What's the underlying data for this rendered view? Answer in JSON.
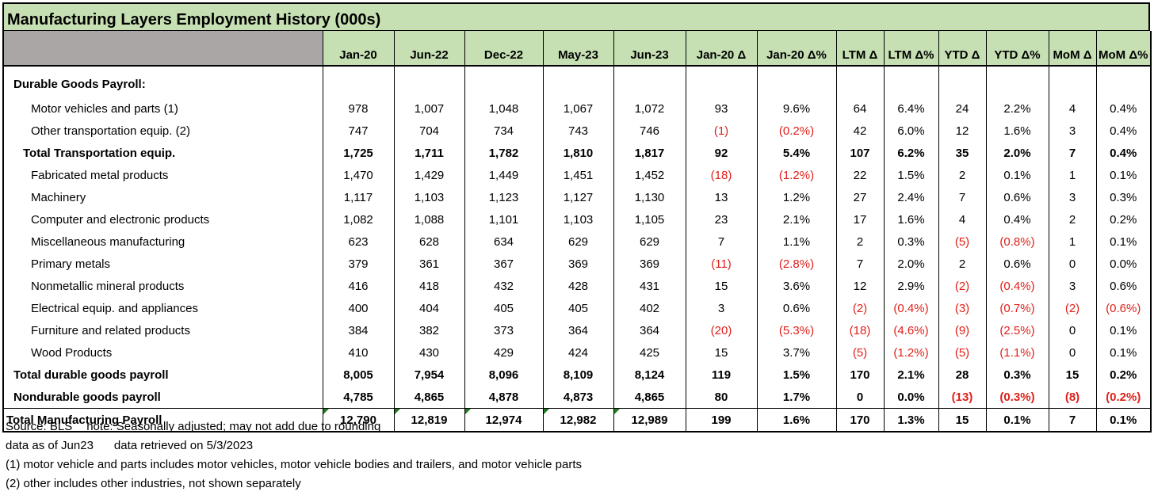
{
  "title": "Manufacturing Layers Employment History (000s)",
  "columns": [
    "Jan-20",
    "Jun-22",
    "Dec-22",
    "May-23",
    "Jun-23",
    "Jan-20 Δ",
    "Jan-20 Δ%",
    "LTM Δ",
    "LTM Δ%",
    "YTD Δ",
    "YTD Δ%",
    "MoM Δ",
    "MoM Δ%"
  ],
  "rows": [
    {
      "label": "Durable Goods Payroll:",
      "style": "section",
      "values": []
    },
    {
      "label": "Motor vehicles and parts (1)",
      "style": "item",
      "flag": true,
      "values": [
        "978",
        "1,007",
        "1,048",
        "1,067",
        "1,072",
        "93",
        "9.6%",
        "64",
        "6.4%",
        "24",
        "2.2%",
        "4",
        "0.4%"
      ]
    },
    {
      "label": "Other transportation equip. (2)",
      "style": "item",
      "values": [
        "747",
        "704",
        "734",
        "743",
        "746",
        "(1)",
        "(0.2%)",
        "42",
        "6.0%",
        "12",
        "1.6%",
        "3",
        "0.4%"
      ]
    },
    {
      "label": "Total Transportation equip.",
      "style": "subtotal",
      "values": [
        "1,725",
        "1,711",
        "1,782",
        "1,810",
        "1,817",
        "92",
        "5.4%",
        "107",
        "6.2%",
        "35",
        "2.0%",
        "7",
        "0.4%"
      ]
    },
    {
      "label": "Fabricated metal products",
      "style": "item",
      "values": [
        "1,470",
        "1,429",
        "1,449",
        "1,451",
        "1,452",
        "(18)",
        "(1.2%)",
        "22",
        "1.5%",
        "2",
        "0.1%",
        "1",
        "0.1%"
      ]
    },
    {
      "label": "Machinery",
      "style": "item",
      "values": [
        "1,117",
        "1,103",
        "1,123",
        "1,127",
        "1,130",
        "13",
        "1.2%",
        "27",
        "2.4%",
        "7",
        "0.6%",
        "3",
        "0.3%"
      ]
    },
    {
      "label": "Computer and electronic products",
      "style": "item",
      "values": [
        "1,082",
        "1,088",
        "1,101",
        "1,103",
        "1,105",
        "23",
        "2.1%",
        "17",
        "1.6%",
        "4",
        "0.4%",
        "2",
        "0.2%"
      ]
    },
    {
      "label": "Miscellaneous manufacturing",
      "style": "item",
      "values": [
        "623",
        "628",
        "634",
        "629",
        "629",
        "7",
        "1.1%",
        "2",
        "0.3%",
        "(5)",
        "(0.8%)",
        "1",
        "0.1%"
      ]
    },
    {
      "label": "Primary metals",
      "style": "item",
      "values": [
        "379",
        "361",
        "367",
        "369",
        "369",
        "(11)",
        "(2.8%)",
        "7",
        "2.0%",
        "2",
        "0.6%",
        "0",
        "0.0%"
      ]
    },
    {
      "label": "Nonmetallic mineral products",
      "style": "item",
      "values": [
        "416",
        "418",
        "432",
        "428",
        "431",
        "15",
        "3.6%",
        "12",
        "2.9%",
        "(2)",
        "(0.4%)",
        "3",
        "0.6%"
      ]
    },
    {
      "label": "Electrical equip. and appliances",
      "style": "item",
      "values": [
        "400",
        "404",
        "405",
        "405",
        "402",
        "3",
        "0.6%",
        "(2)",
        "(0.4%)",
        "(3)",
        "(0.7%)",
        "(2)",
        "(0.6%)"
      ]
    },
    {
      "label": "Furniture and related products",
      "style": "item",
      "values": [
        "384",
        "382",
        "373",
        "364",
        "364",
        "(20)",
        "(5.3%)",
        "(18)",
        "(4.6%)",
        "(9)",
        "(2.5%)",
        "0",
        "0.1%"
      ]
    },
    {
      "label": "Wood Products",
      "style": "item",
      "values": [
        "410",
        "430",
        "429",
        "424",
        "425",
        "15",
        "3.7%",
        "(5)",
        "(1.2%)",
        "(5)",
        "(1.1%)",
        "0",
        "0.1%"
      ]
    },
    {
      "label": "Total durable goods payroll",
      "style": "major",
      "values": [
        "8,005",
        "7,954",
        "8,096",
        "8,109",
        "8,124",
        "119",
        "1.5%",
        "170",
        "2.1%",
        "28",
        "0.3%",
        "15",
        "0.2%"
      ]
    },
    {
      "label": "Nondurable goods payroll",
      "style": "major",
      "values": [
        "4,785",
        "4,865",
        "4,878",
        "4,873",
        "4,865",
        "80",
        "1.7%",
        "0",
        "0.0%",
        "(13)",
        "(0.3%)",
        "(8)",
        "(0.2%)"
      ]
    },
    {
      "label": "Total Manufacturing Payroll",
      "style": "grand",
      "values": [
        "12,790",
        "12,819",
        "12,974",
        "12,982",
        "12,989",
        "199",
        "1.6%",
        "170",
        "1.3%",
        "15",
        "0.1%",
        "7",
        "0.1%"
      ]
    }
  ],
  "notes": {
    "source": "Source: BLS",
    "note": "note: Seasonally adjusted; may not add due to rounding",
    "data_as_of": "data as of Jun23",
    "retrieved": "data retrieved on 5/3/2023",
    "footnote1": "(1) motor vehicle and parts includes motor vehicles, motor vehicle bodies and trailers, and motor vehicle parts",
    "footnote2": "(2) other includes other industries, not shown separately"
  },
  "colors": {
    "header_bg": "#c6e0b4",
    "label_header_bg": "#aaa6a6",
    "negative": "#e0201a",
    "flag": "#1f7a1f"
  }
}
